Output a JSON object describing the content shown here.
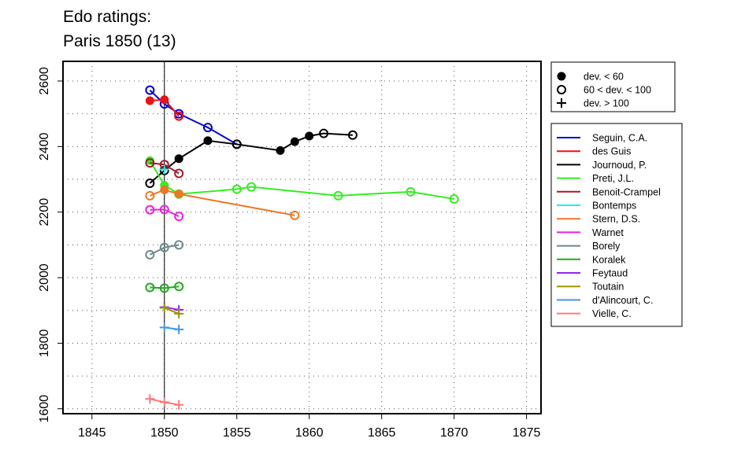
{
  "chart_data": {
    "type": "line",
    "title_lines": [
      "Edo ratings:",
      "Paris 1850 (13)"
    ],
    "xlim": [
      1843,
      1876
    ],
    "ylim": [
      1585,
      2660
    ],
    "x_ticks": [
      1845,
      1850,
      1855,
      1860,
      1865,
      1870,
      1875
    ],
    "y_ticks": [
      1600,
      1800,
      2000,
      2200,
      2400,
      2600
    ],
    "x_minor_grid": [
      1845,
      1850,
      1855,
      1860,
      1865,
      1870,
      1875
    ],
    "y_minor_grid": [
      1700,
      1900,
      2100,
      2300,
      2500
    ],
    "grid": true,
    "reference_line_x": 1850,
    "marker_legend": [
      {
        "label": "dev. < 60",
        "marker": "filled-circle"
      },
      {
        "label": "60 < dev. < 100",
        "marker": "open-circle"
      },
      {
        "label": "dev. > 100",
        "marker": "plus"
      }
    ],
    "series": [
      {
        "name": "Seguin, C.A.",
        "color": "#0000dd",
        "points": [
          {
            "x": 1849,
            "y": 2572,
            "m": "open"
          },
          {
            "x": 1850,
            "y": 2530,
            "m": "open"
          },
          {
            "x": 1851,
            "y": 2500,
            "m": "open"
          },
          {
            "x": 1853,
            "y": 2458,
            "m": "open"
          },
          {
            "x": 1855,
            "y": 2407,
            "m": "open"
          }
        ]
      },
      {
        "name": "des Guis",
        "color": "#ee1111",
        "points": [
          {
            "x": 1849,
            "y": 2540,
            "m": "filled"
          },
          {
            "x": 1850,
            "y": 2543,
            "m": "filled"
          },
          {
            "x": 1851,
            "y": 2493,
            "m": "open"
          }
        ]
      },
      {
        "name": "Journoud, P.",
        "color": "#000000",
        "points": [
          {
            "x": 1849,
            "y": 2288,
            "m": "open"
          },
          {
            "x": 1850,
            "y": 2327,
            "m": "open"
          },
          {
            "x": 1851,
            "y": 2363,
            "m": "filled"
          },
          {
            "x": 1853,
            "y": 2418,
            "m": "filled"
          },
          {
            "x": 1855,
            "y": 2407,
            "m": "open"
          },
          {
            "x": 1858,
            "y": 2388,
            "m": "filled"
          },
          {
            "x": 1859,
            "y": 2415,
            "m": "filled"
          },
          {
            "x": 1860,
            "y": 2432,
            "m": "filled"
          },
          {
            "x": 1861,
            "y": 2440,
            "m": "open"
          },
          {
            "x": 1863,
            "y": 2435,
            "m": "open"
          }
        ]
      },
      {
        "name": "Preti, J.L.",
        "color": "#33ee22",
        "points": [
          {
            "x": 1849,
            "y": 2357,
            "m": "filled"
          },
          {
            "x": 1850,
            "y": 2282,
            "m": "filled"
          },
          {
            "x": 1851,
            "y": 2255,
            "m": "open"
          },
          {
            "x": 1855,
            "y": 2270,
            "m": "open"
          },
          {
            "x": 1856,
            "y": 2277,
            "m": "open"
          },
          {
            "x": 1862,
            "y": 2250,
            "m": "open"
          },
          {
            "x": 1867,
            "y": 2262,
            "m": "open"
          },
          {
            "x": 1870,
            "y": 2240,
            "m": "open"
          }
        ]
      },
      {
        "name": "Benoit-Crampel",
        "color": "#a01c2c",
        "points": [
          {
            "x": 1849,
            "y": 2350,
            "m": "open"
          },
          {
            "x": 1850,
            "y": 2345,
            "m": "open"
          },
          {
            "x": 1851,
            "y": 2318,
            "m": "open"
          }
        ]
      },
      {
        "name": "Bontemps",
        "color": "#22eeee",
        "points": [
          {
            "x": 1850,
            "y": 2330,
            "m": "plus"
          }
        ]
      },
      {
        "name": "Stern, D.S.",
        "color": "#ee7722",
        "points": [
          {
            "x": 1849,
            "y": 2250,
            "m": "open"
          },
          {
            "x": 1850,
            "y": 2268,
            "m": "filled"
          },
          {
            "x": 1851,
            "y": 2255,
            "m": "filled"
          },
          {
            "x": 1859,
            "y": 2190,
            "m": "open"
          }
        ]
      },
      {
        "name": "Warnet",
        "color": "#ee22dd",
        "points": [
          {
            "x": 1849,
            "y": 2207,
            "m": "open"
          },
          {
            "x": 1850,
            "y": 2208,
            "m": "open"
          },
          {
            "x": 1851,
            "y": 2187,
            "m": "open"
          }
        ]
      },
      {
        "name": "Borely",
        "color": "#6f8a8a",
        "points": [
          {
            "x": 1849,
            "y": 2070,
            "m": "open"
          },
          {
            "x": 1850,
            "y": 2092,
            "m": "open"
          },
          {
            "x": 1851,
            "y": 2100,
            "m": "open"
          }
        ]
      },
      {
        "name": "Koralek",
        "color": "#22aa22",
        "points": [
          {
            "x": 1849,
            "y": 1970,
            "m": "open"
          },
          {
            "x": 1850,
            "y": 1968,
            "m": "open"
          },
          {
            "x": 1851,
            "y": 1973,
            "m": "open"
          }
        ]
      },
      {
        "name": "Feytaud",
        "color": "#9922ee",
        "points": [
          {
            "x": 1850,
            "y": 1910,
            "m": "plus"
          },
          {
            "x": 1851,
            "y": 1902,
            "m": "plus"
          }
        ]
      },
      {
        "name": "Toutain",
        "color": "#999900",
        "points": [
          {
            "x": 1850,
            "y": 1908,
            "m": "plus"
          },
          {
            "x": 1851,
            "y": 1890,
            "m": "plus"
          }
        ]
      },
      {
        "name": "d'Alincourt, C.",
        "color": "#4499dd",
        "points": [
          {
            "x": 1850,
            "y": 1848,
            "m": "plus"
          },
          {
            "x": 1851,
            "y": 1842,
            "m": "plus"
          }
        ]
      },
      {
        "name": "Vielle, C.",
        "color": "#ff7777",
        "points": [
          {
            "x": 1849,
            "y": 1630,
            "m": "plus"
          },
          {
            "x": 1850,
            "y": 1620,
            "m": "plus"
          },
          {
            "x": 1851,
            "y": 1612,
            "m": "plus"
          }
        ]
      }
    ]
  }
}
